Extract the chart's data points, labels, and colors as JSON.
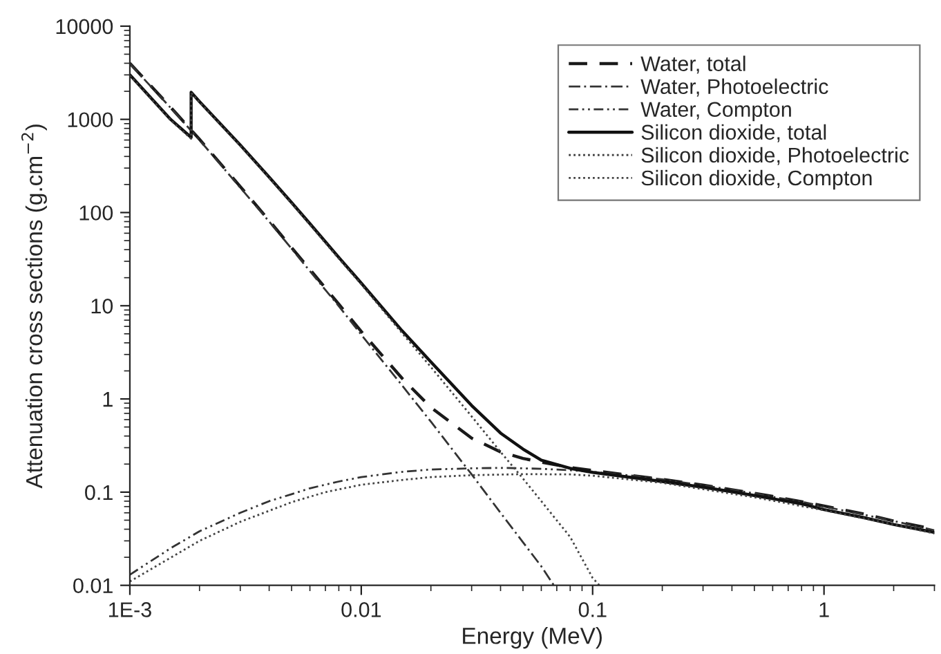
{
  "chart_data": {
    "type": "line",
    "xlabel": "Energy (MeV)",
    "ylabel": "Attenuation cross sections (g.cm$^{−2}$)",
    "log": "xy",
    "xlim": [
      0.001,
      3
    ],
    "ylim": [
      0.01,
      10000
    ],
    "xticks": [
      {
        "value": 0.001,
        "label": "1E-3"
      },
      {
        "value": 0.01,
        "label": "0.01"
      },
      {
        "value": 0.1,
        "label": "0.1"
      },
      {
        "value": 1,
        "label": "1"
      }
    ],
    "yticks": [
      {
        "value": 0.01,
        "label": "0.01"
      },
      {
        "value": 0.1,
        "label": "0.1"
      },
      1,
      10,
      100,
      1000,
      10000
    ],
    "grid": false,
    "legend": "top right",
    "marker": "none",
    "series": [
      {
        "name": "Water, total",
        "color": "#1a1a1a",
        "line_style": "dashed",
        "x": [
          0.001,
          0.0015,
          0.002,
          0.003,
          0.004,
          0.005,
          0.006,
          0.008,
          0.01,
          0.015,
          0.02,
          0.03,
          0.04,
          0.05,
          0.06,
          0.08,
          0.1,
          0.15,
          0.2,
          0.3,
          0.4,
          0.5,
          0.6,
          0.8,
          1,
          1.5,
          2,
          3
        ],
        "values": [
          4000,
          1350,
          610,
          190,
          82,
          42,
          24.5,
          10.4,
          5.3,
          1.67,
          0.81,
          0.38,
          0.27,
          0.23,
          0.21,
          0.184,
          0.171,
          0.15,
          0.137,
          0.119,
          0.106,
          0.097,
          0.09,
          0.079,
          0.071,
          0.058,
          0.049,
          0.04
        ]
      },
      {
        "name": "Water, Photoelectric",
        "color": "#333333",
        "line_style": "dashdot",
        "x": [
          0.001,
          0.0015,
          0.002,
          0.003,
          0.004,
          0.005,
          0.006,
          0.008,
          0.01,
          0.015,
          0.02,
          0.03,
          0.04,
          0.05,
          0.06,
          0.068
        ],
        "values": [
          3950,
          1330,
          600,
          185,
          80,
          41,
          23.5,
          9.9,
          4.9,
          1.4,
          0.57,
          0.155,
          0.06,
          0.029,
          0.016,
          0.01
        ]
      },
      {
        "name": "Water, Compton",
        "color": "#333333",
        "line_style": "dashdotdot",
        "x": [
          0.001,
          0.0015,
          0.002,
          0.003,
          0.004,
          0.005,
          0.006,
          0.008,
          0.01,
          0.015,
          0.02,
          0.03,
          0.04,
          0.05,
          0.06,
          0.08,
          0.1,
          0.15,
          0.2,
          0.3,
          0.4,
          0.5,
          0.6,
          0.8,
          1,
          1.5,
          2,
          3
        ],
        "values": [
          0.013,
          0.025,
          0.038,
          0.06,
          0.08,
          0.095,
          0.11,
          0.13,
          0.145,
          0.165,
          0.175,
          0.18,
          0.182,
          0.18,
          0.178,
          0.172,
          0.165,
          0.15,
          0.137,
          0.118,
          0.106,
          0.097,
          0.089,
          0.079,
          0.07,
          0.057,
          0.049,
          0.039
        ]
      },
      {
        "name": "Silicon dioxide, total",
        "color": "#111111",
        "line_style": "solid",
        "x": [
          0.001,
          0.0015,
          0.00184,
          0.00184,
          0.002,
          0.003,
          0.004,
          0.005,
          0.006,
          0.008,
          0.01,
          0.015,
          0.02,
          0.03,
          0.04,
          0.05,
          0.06,
          0.08,
          0.1,
          0.15,
          0.2,
          0.3,
          0.4,
          0.5,
          0.6,
          0.8,
          1,
          1.5,
          2,
          3
        ],
        "values": [
          3000,
          1000,
          640,
          1950,
          1550,
          530,
          240,
          128,
          76,
          33,
          17.5,
          5.4,
          2.5,
          0.85,
          0.43,
          0.29,
          0.22,
          0.18,
          0.163,
          0.143,
          0.13,
          0.113,
          0.101,
          0.092,
          0.085,
          0.075,
          0.065,
          0.053,
          0.045,
          0.037
        ]
      },
      {
        "name": "Silicon dioxide, Photoelectric",
        "color": "#444444",
        "line_style": "dotted",
        "x": [
          0.001,
          0.0015,
          0.00184,
          0.00184,
          0.002,
          0.003,
          0.004,
          0.005,
          0.006,
          0.008,
          0.01,
          0.015,
          0.02,
          0.03,
          0.04,
          0.05,
          0.06,
          0.08,
          0.1,
          0.107
        ],
        "values": [
          2950,
          980,
          620,
          1930,
          1530,
          520,
          235,
          125,
          74,
          32,
          17,
          5.1,
          2.2,
          0.65,
          0.27,
          0.14,
          0.08,
          0.033,
          0.012,
          0.01
        ]
      },
      {
        "name": "Silicon dioxide, Compton",
        "color": "#444444",
        "line_style": "dotted",
        "x": [
          0.001,
          0.002,
          0.003,
          0.005,
          0.007,
          0.01,
          0.015,
          0.02,
          0.03,
          0.05,
          0.08,
          0.1,
          0.2,
          0.5,
          1,
          2,
          3
        ],
        "values": [
          0.011,
          0.03,
          0.048,
          0.078,
          0.1,
          0.12,
          0.135,
          0.145,
          0.152,
          0.156,
          0.155,
          0.15,
          0.126,
          0.088,
          0.064,
          0.045,
          0.036
        ]
      }
    ]
  }
}
